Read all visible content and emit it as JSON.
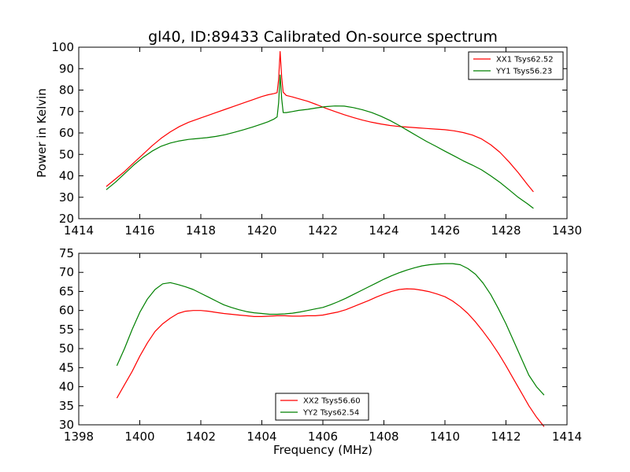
{
  "chart_data": [
    {
      "type": "line",
      "title": "gl40, ID:89433 Calibrated On-source spectrum",
      "xlabel": "",
      "ylabel": "Power in Kelvin",
      "xlim": [
        1414,
        1430
      ],
      "ylim": [
        20,
        100
      ],
      "xticks": [
        "1414",
        "1416",
        "1418",
        "1420",
        "1422",
        "1424",
        "1426",
        "1428",
        "1430"
      ],
      "yticks": [
        "20",
        "30",
        "40",
        "50",
        "60",
        "70",
        "80",
        "90",
        "100"
      ],
      "grid": false,
      "legend_position": "top-right",
      "series": [
        {
          "name": "XX1 Tsys62.52",
          "color": "#ff0000",
          "x": [
            1414.9,
            1415.2,
            1415.5,
            1415.8,
            1416.1,
            1416.4,
            1416.7,
            1417.0,
            1417.3,
            1417.6,
            1417.9,
            1418.2,
            1418.5,
            1418.8,
            1419.1,
            1419.4,
            1419.7,
            1420.0,
            1420.2,
            1420.4,
            1420.5,
            1420.55,
            1420.6,
            1420.65,
            1420.7,
            1420.8,
            1421.0,
            1421.2,
            1421.5,
            1421.8,
            1422.1,
            1422.4,
            1422.7,
            1423.0,
            1423.3,
            1423.6,
            1423.9,
            1424.2,
            1424.5,
            1424.8,
            1425.1,
            1425.4,
            1425.7,
            1426.0,
            1426.3,
            1426.6,
            1426.9,
            1427.2,
            1427.5,
            1427.8,
            1428.1,
            1428.4,
            1428.7,
            1428.9
          ],
          "y": [
            35,
            38.5,
            42,
            46,
            50,
            54,
            57.5,
            60.5,
            63,
            65,
            66.5,
            68,
            69.5,
            71,
            72.5,
            74,
            75.5,
            77,
            77.8,
            78.4,
            78.8,
            85,
            98,
            86,
            79,
            77.5,
            76.8,
            76,
            74.8,
            73.2,
            71.5,
            70,
            68.5,
            67.2,
            66,
            65,
            64.2,
            63.5,
            63,
            62.7,
            62.4,
            62.1,
            61.8,
            61.5,
            61,
            60.2,
            59,
            57.2,
            54.5,
            51,
            46.5,
            41.5,
            36,
            32.5
          ]
        },
        {
          "name": "YY1 Tsys56.23",
          "color": "#008000",
          "x": [
            1414.9,
            1415.2,
            1415.5,
            1415.8,
            1416.1,
            1416.4,
            1416.7,
            1417.0,
            1417.3,
            1417.6,
            1417.9,
            1418.2,
            1418.5,
            1418.8,
            1419.1,
            1419.4,
            1419.7,
            1420.0,
            1420.2,
            1420.4,
            1420.5,
            1420.55,
            1420.6,
            1420.65,
            1420.7,
            1420.8,
            1421.0,
            1421.2,
            1421.5,
            1421.8,
            1422.1,
            1422.4,
            1422.7,
            1423.0,
            1423.3,
            1423.6,
            1423.9,
            1424.2,
            1424.5,
            1424.8,
            1425.1,
            1425.4,
            1425.7,
            1426.0,
            1426.3,
            1426.6,
            1426.9,
            1427.2,
            1427.5,
            1427.8,
            1428.1,
            1428.4,
            1428.7,
            1428.9
          ],
          "y": [
            33.5,
            37,
            41,
            45,
            48.5,
            51.5,
            53.8,
            55.3,
            56.3,
            57,
            57.4,
            57.8,
            58.4,
            59.2,
            60.3,
            61.5,
            62.8,
            64.2,
            65.2,
            66.5,
            67.5,
            74,
            87,
            76,
            69.5,
            69.5,
            70,
            70.5,
            71,
            71.7,
            72.3,
            72.6,
            72.5,
            71.8,
            70.8,
            69.5,
            67.8,
            65.8,
            63.5,
            61,
            58.5,
            56,
            53.8,
            51.5,
            49.3,
            47,
            45,
            42.8,
            40,
            37,
            33.5,
            30,
            27,
            24.8
          ]
        }
      ]
    },
    {
      "type": "line",
      "title": "",
      "xlabel": "Frequency (MHz)",
      "ylabel": "",
      "xlim": [
        1398,
        1414
      ],
      "ylim": [
        30,
        75
      ],
      "xticks": [
        "1398",
        "1400",
        "1402",
        "1404",
        "1406",
        "1408",
        "1410",
        "1412",
        "1414"
      ],
      "yticks": [
        "30",
        "35",
        "40",
        "45",
        "50",
        "55",
        "60",
        "65",
        "70",
        "75"
      ],
      "grid": false,
      "legend_position": "bottom-center",
      "series": [
        {
          "name": "XX2 Tsys56.60",
          "color": "#ff0000",
          "x": [
            1399.25,
            1399.5,
            1399.75,
            1400.0,
            1400.25,
            1400.5,
            1400.75,
            1401.0,
            1401.25,
            1401.5,
            1401.75,
            1402.0,
            1402.25,
            1402.5,
            1402.75,
            1403.0,
            1403.25,
            1403.5,
            1403.75,
            1404.0,
            1404.25,
            1404.5,
            1404.75,
            1405.0,
            1405.25,
            1405.5,
            1405.75,
            1406.0,
            1406.25,
            1406.5,
            1406.75,
            1407.0,
            1407.25,
            1407.5,
            1407.75,
            1408.0,
            1408.25,
            1408.5,
            1408.75,
            1409.0,
            1409.25,
            1409.5,
            1409.75,
            1410.0,
            1410.25,
            1410.5,
            1410.75,
            1411.0,
            1411.25,
            1411.5,
            1411.75,
            1412.0,
            1412.25,
            1412.5,
            1412.75,
            1413.0,
            1413.25
          ],
          "y": [
            37,
            40.5,
            44,
            48,
            51.5,
            54.5,
            56.5,
            58,
            59.2,
            59.8,
            60,
            60,
            59.8,
            59.5,
            59.2,
            59,
            58.8,
            58.6,
            58.4,
            58.4,
            58.5,
            58.6,
            58.6,
            58.5,
            58.5,
            58.6,
            58.6,
            58.8,
            59.2,
            59.6,
            60.2,
            61,
            61.8,
            62.6,
            63.5,
            64.3,
            65,
            65.5,
            65.7,
            65.6,
            65.3,
            64.9,
            64.3,
            63.6,
            62.5,
            61,
            59.2,
            57,
            54.5,
            51.8,
            48.8,
            45.5,
            42,
            38.5,
            35,
            32,
            29.5
          ]
        },
        {
          "name": "YY2 Tsys62.54",
          "color": "#008000",
          "x": [
            1399.25,
            1399.5,
            1399.75,
            1400.0,
            1400.25,
            1400.5,
            1400.75,
            1401.0,
            1401.25,
            1401.5,
            1401.75,
            1402.0,
            1402.25,
            1402.5,
            1402.75,
            1403.0,
            1403.25,
            1403.5,
            1403.75,
            1404.0,
            1404.25,
            1404.5,
            1404.75,
            1405.0,
            1405.25,
            1405.5,
            1405.75,
            1406.0,
            1406.25,
            1406.5,
            1406.75,
            1407.0,
            1407.25,
            1407.5,
            1407.75,
            1408.0,
            1408.25,
            1408.5,
            1408.75,
            1409.0,
            1409.25,
            1409.5,
            1409.75,
            1410.0,
            1410.25,
            1410.5,
            1410.75,
            1411.0,
            1411.25,
            1411.5,
            1411.75,
            1412.0,
            1412.25,
            1412.5,
            1412.75,
            1413.0,
            1413.25
          ],
          "y": [
            45.5,
            50,
            55,
            59.5,
            63,
            65.5,
            67,
            67.3,
            66.8,
            66.2,
            65.5,
            64.5,
            63.5,
            62.5,
            61.5,
            60.8,
            60.2,
            59.7,
            59.4,
            59.2,
            59,
            59,
            59.1,
            59.3,
            59.6,
            60,
            60.4,
            60.8,
            61.5,
            62.3,
            63.2,
            64.2,
            65.2,
            66.2,
            67.2,
            68.2,
            69.1,
            69.9,
            70.6,
            71.2,
            71.7,
            72,
            72.2,
            72.3,
            72.3,
            72,
            71,
            69.5,
            67.2,
            64.2,
            60.5,
            56.5,
            52,
            47.5,
            43,
            40,
            37.8
          ]
        }
      ]
    }
  ]
}
